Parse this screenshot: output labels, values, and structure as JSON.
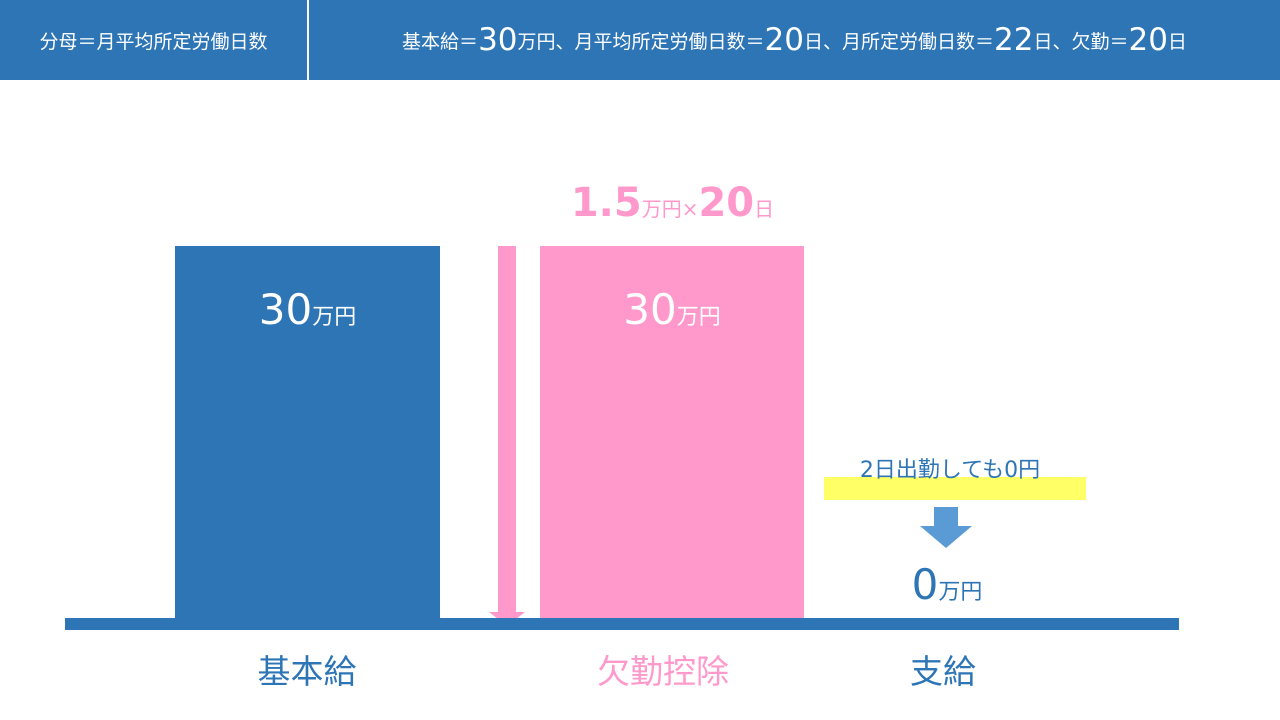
{
  "header": {
    "left": "分母＝月平均所定労働日数",
    "right": [
      "基本給＝",
      "30",
      "万円、月平均所定労働日数＝",
      "20",
      "日、月所定労働日数＝",
      "22",
      "日、欠勤＝",
      "20",
      "日"
    ]
  },
  "salary_box": {
    "amount": "30",
    "unit": "万円"
  },
  "deduction": {
    "formula": [
      "1.5",
      "万円×",
      "20",
      "日"
    ],
    "amount": "30",
    "unit": "万円"
  },
  "payment": {
    "note": "2日出勤しても0円",
    "amount": "0",
    "unit": "万円"
  },
  "labels": {
    "salary": "基本給",
    "deduction": "欠勤控除",
    "payment": "支給"
  }
}
